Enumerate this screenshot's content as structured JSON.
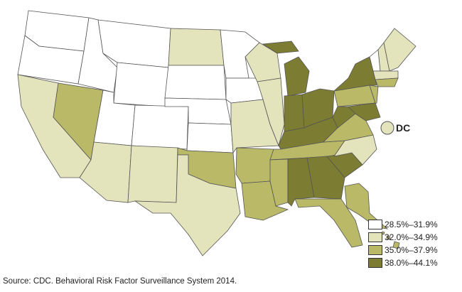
{
  "colors": {
    "c1": "#ffffff",
    "c2": "#e3e3bc",
    "c3": "#b9b968",
    "c4": "#7c7c33"
  },
  "legend": [
    {
      "label": "28.5%–31.9%",
      "class": "c1"
    },
    {
      "label": "32.0%–34.9%",
      "class": "c2"
    },
    {
      "label": "35.0%–37.9%",
      "class": "c3"
    },
    {
      "label": "38.0%–44.1%",
      "class": "c4"
    }
  ],
  "states": {
    "WA": "c1",
    "OR": "c1",
    "ID": "c1",
    "MT": "c1",
    "WY": "c1",
    "UT": "c1",
    "CO": "c1",
    "NE": "c1",
    "SD": "c1",
    "KS": "c1",
    "MN": "c1",
    "IA": "c1",
    "VT": "c1",
    "CA": "c2",
    "AZ": "c2",
    "NM": "c2",
    "TX": "c2",
    "ND": "c2",
    "WI": "c2",
    "IL": "c2",
    "MO": "c2",
    "NC": "c2",
    "NH": "c2",
    "ME": "c2",
    "MA": "c2",
    "DC": "c2",
    "NV": "c3",
    "OK": "c3",
    "AR": "c3",
    "LA": "c3",
    "MS": "c3",
    "TN": "c3",
    "FL": "c3",
    "VA": "c3",
    "PA": "c3",
    "NJ": "c3",
    "CT": "c3",
    "AK": "c3",
    "HI": "c3",
    "MI": "c4",
    "IN": "c4",
    "OH": "c4",
    "KY": "c4",
    "WV": "c4",
    "NY": "c4",
    "AL": "c4",
    "GA": "c4",
    "SC": "c4",
    "MD": "c4"
  },
  "dc_label": "DC",
  "source": "Source: CDC. Behavioral Risk Factor Surveillance System 2014."
}
